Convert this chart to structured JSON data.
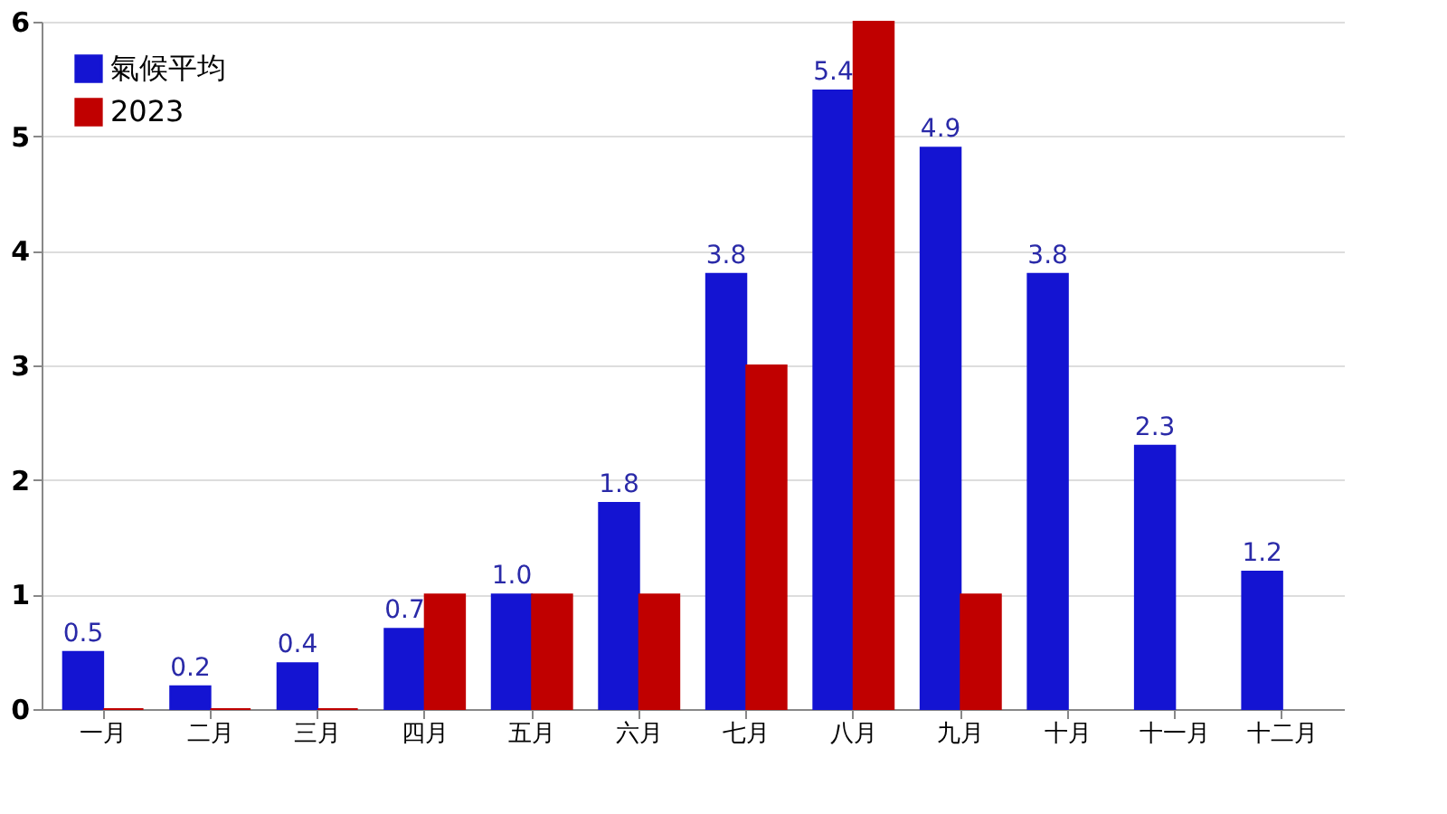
{
  "chart_data": {
    "type": "bar",
    "categories": [
      "一月",
      "二月",
      "三月",
      "四月",
      "五月",
      "六月",
      "七月",
      "八月",
      "九月",
      "十月",
      "十一月",
      "十二月"
    ],
    "series": [
      {
        "name": "氣候平均",
        "color": "#1414d2",
        "values": [
          0.5,
          0.2,
          0.4,
          0.7,
          1.0,
          1.8,
          3.8,
          5.4,
          4.9,
          3.8,
          2.3,
          1.2
        ],
        "value_labels": [
          "0.5",
          "0.2",
          "0.4",
          "0.7",
          "1.0",
          "1.8",
          "3.8",
          "5.4",
          "4.9",
          "3.8",
          "2.3",
          "1.2"
        ]
      },
      {
        "name": "2023",
        "color": "#c00000",
        "values": [
          0,
          0,
          0,
          1,
          1,
          1,
          3,
          6,
          1,
          null,
          null,
          null
        ]
      }
    ],
    "ylim": [
      0,
      6
    ],
    "yticks": [
      0,
      1,
      2,
      3,
      4,
      5,
      6
    ],
    "grid": "y",
    "legend": "top left"
  }
}
